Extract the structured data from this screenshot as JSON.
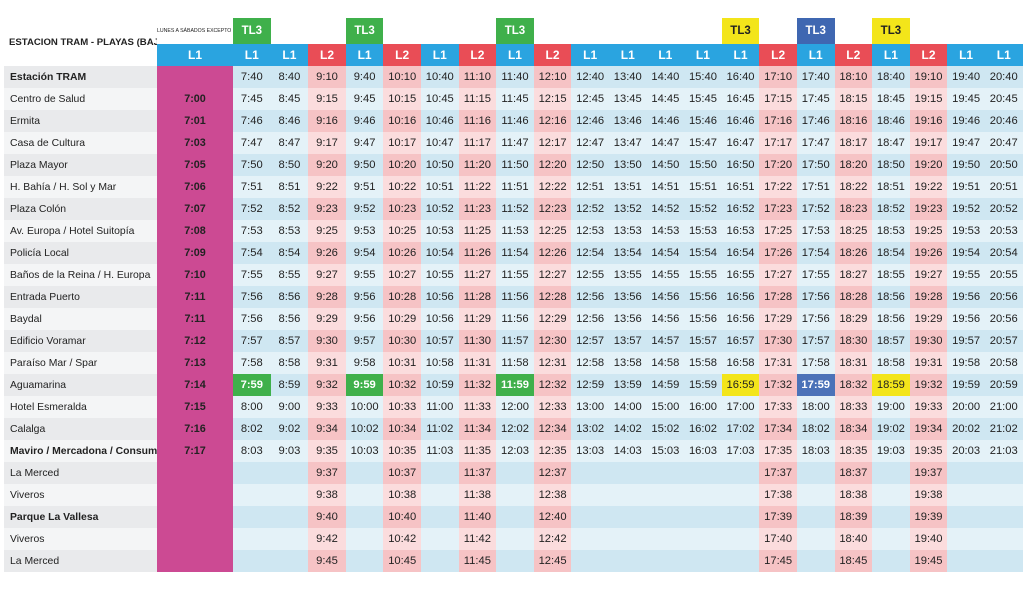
{
  "title": "ESTACION TRAM - PLAYAS (BAJADA)",
  "note": "LUNES A SÁBADOS EXCEPTO FESTIVOS",
  "colors": {
    "L1": "#2aa4e0",
    "L2": "#e94d56",
    "TL3_green": "#3fb04b",
    "TL3_yellow": "#f3e51a",
    "TL3_blue": "#3f67b1",
    "first_column": "#cc4a93",
    "title_bg": "#5e6777",
    "note_bg": "#5cb3e3"
  },
  "columns": [
    {
      "line": "L1",
      "tag": ""
    },
    {
      "line": "L1",
      "tag": "TL3",
      "tag_color": "green"
    },
    {
      "line": "L1",
      "tag": ""
    },
    {
      "line": "L2",
      "tag": ""
    },
    {
      "line": "L1",
      "tag": "TL3",
      "tag_color": "green"
    },
    {
      "line": "L2",
      "tag": ""
    },
    {
      "line": "L1",
      "tag": ""
    },
    {
      "line": "L2",
      "tag": ""
    },
    {
      "line": "L1",
      "tag": "TL3",
      "tag_color": "green"
    },
    {
      "line": "L2",
      "tag": ""
    },
    {
      "line": "L1",
      "tag": ""
    },
    {
      "line": "L1",
      "tag": ""
    },
    {
      "line": "L1",
      "tag": ""
    },
    {
      "line": "L1",
      "tag": ""
    },
    {
      "line": "L1",
      "tag": "TL3",
      "tag_color": "yellow"
    },
    {
      "line": "L2",
      "tag": ""
    },
    {
      "line": "L1",
      "tag": "TL3",
      "tag_color": "blue"
    },
    {
      "line": "L2",
      "tag": ""
    },
    {
      "line": "L1",
      "tag": "TL3",
      "tag_color": "yellow"
    },
    {
      "line": "L2",
      "tag": ""
    },
    {
      "line": "L1",
      "tag": ""
    },
    {
      "line": "L1",
      "tag": ""
    }
  ],
  "highlights": [
    {
      "row": 14,
      "col": 1,
      "color": "green"
    },
    {
      "row": 14,
      "col": 4,
      "color": "green"
    },
    {
      "row": 14,
      "col": 8,
      "color": "green"
    },
    {
      "row": 14,
      "col": 14,
      "color": "yellow"
    },
    {
      "row": 14,
      "col": 16,
      "color": "blue"
    },
    {
      "row": 14,
      "col": 18,
      "color": "yellow"
    }
  ],
  "rows": [
    {
      "stop": "Estación TRAM",
      "bold": true,
      "times": [
        "",
        "7:40",
        "8:40",
        "9:10",
        "9:40",
        "10:10",
        "10:40",
        "11:10",
        "11:40",
        "12:10",
        "12:40",
        "13:40",
        "14:40",
        "15:40",
        "16:40",
        "17:10",
        "17:40",
        "18:10",
        "18:40",
        "19:10",
        "19:40",
        "20:40"
      ]
    },
    {
      "stop": "Centro de Salud",
      "bold": false,
      "times": [
        "7:00",
        "7:45",
        "8:45",
        "9:15",
        "9:45",
        "10:15",
        "10:45",
        "11:15",
        "11:45",
        "12:15",
        "12:45",
        "13:45",
        "14:45",
        "15:45",
        "16:45",
        "17:15",
        "17:45",
        "18:15",
        "18:45",
        "19:15",
        "19:45",
        "20:45"
      ]
    },
    {
      "stop": "Ermita",
      "bold": false,
      "times": [
        "7:01",
        "7:46",
        "8:46",
        "9:16",
        "9:46",
        "10:16",
        "10:46",
        "11:16",
        "11:46",
        "12:16",
        "12:46",
        "13:46",
        "14:46",
        "15:46",
        "16:46",
        "17:16",
        "17:46",
        "18:16",
        "18:46",
        "19:16",
        "19:46",
        "20:46"
      ]
    },
    {
      "stop": "Casa de Cultura",
      "bold": false,
      "times": [
        "7:03",
        "7:47",
        "8:47",
        "9:17",
        "9:47",
        "10:17",
        "10:47",
        "11:17",
        "11:47",
        "12:17",
        "12:47",
        "13:47",
        "14:47",
        "15:47",
        "16:47",
        "17:17",
        "17:47",
        "18:17",
        "18:47",
        "19:17",
        "19:47",
        "20:47"
      ]
    },
    {
      "stop": "Plaza Mayor",
      "bold": false,
      "times": [
        "7:05",
        "7:50",
        "8:50",
        "9:20",
        "9:50",
        "10:20",
        "10:50",
        "11:20",
        "11:50",
        "12:20",
        "12:50",
        "13:50",
        "14:50",
        "15:50",
        "16:50",
        "17:20",
        "17:50",
        "18:20",
        "18:50",
        "19:20",
        "19:50",
        "20:50"
      ]
    },
    {
      "stop": "H. Bahía / H. Sol y Mar",
      "bold": false,
      "times": [
        "7:06",
        "7:51",
        "8:51",
        "9:22",
        "9:51",
        "10:22",
        "10:51",
        "11:22",
        "11:51",
        "12:22",
        "12:51",
        "13:51",
        "14:51",
        "15:51",
        "16:51",
        "17:22",
        "17:51",
        "18:22",
        "18:51",
        "19:22",
        "19:51",
        "20:51"
      ]
    },
    {
      "stop": "Plaza Colón",
      "bold": false,
      "times": [
        "7:07",
        "7:52",
        "8:52",
        "9:23",
        "9:52",
        "10:23",
        "10:52",
        "11:23",
        "11:52",
        "12:23",
        "12:52",
        "13:52",
        "14:52",
        "15:52",
        "16:52",
        "17:23",
        "17:52",
        "18:23",
        "18:52",
        "19:23",
        "19:52",
        "20:52"
      ]
    },
    {
      "stop": "Av. Europa / Hotel Suitopía",
      "bold": false,
      "times": [
        "7:08",
        "7:53",
        "8:53",
        "9:25",
        "9:53",
        "10:25",
        "10:53",
        "11:25",
        "11:53",
        "12:25",
        "12:53",
        "13:53",
        "14:53",
        "15:53",
        "16:53",
        "17:25",
        "17:53",
        "18:25",
        "18:53",
        "19:25",
        "19:53",
        "20:53"
      ]
    },
    {
      "stop": "Policía Local",
      "bold": false,
      "times": [
        "7:09",
        "7:54",
        "8:54",
        "9:26",
        "9:54",
        "10:26",
        "10:54",
        "11:26",
        "11:54",
        "12:26",
        "12:54",
        "13:54",
        "14:54",
        "15:54",
        "16:54",
        "17:26",
        "17:54",
        "18:26",
        "18:54",
        "19:26",
        "19:54",
        "20:54"
      ]
    },
    {
      "stop": "Baños de la Reina / H. Europa",
      "bold": false,
      "times": [
        "7:10",
        "7:55",
        "8:55",
        "9:27",
        "9:55",
        "10:27",
        "10:55",
        "11:27",
        "11:55",
        "12:27",
        "12:55",
        "13:55",
        "14:55",
        "15:55",
        "16:55",
        "17:27",
        "17:55",
        "18:27",
        "18:55",
        "19:27",
        "19:55",
        "20:55"
      ]
    },
    {
      "stop": "Entrada Puerto",
      "bold": false,
      "times": [
        "7:11",
        "7:56",
        "8:56",
        "9:28",
        "9:56",
        "10:28",
        "10:56",
        "11:28",
        "11:56",
        "12:28",
        "12:56",
        "13:56",
        "14:56",
        "15:56",
        "16:56",
        "17:28",
        "17:56",
        "18:28",
        "18:56",
        "19:28",
        "19:56",
        "20:56"
      ]
    },
    {
      "stop": "Baydal",
      "bold": false,
      "times": [
        "7:11",
        "7:56",
        "8:56",
        "9:29",
        "9:56",
        "10:29",
        "10:56",
        "11:29",
        "11:56",
        "12:29",
        "12:56",
        "13:56",
        "14:56",
        "15:56",
        "16:56",
        "17:29",
        "17:56",
        "18:29",
        "18:56",
        "19:29",
        "19:56",
        "20:56"
      ]
    },
    {
      "stop": "Edificio Voramar",
      "bold": false,
      "times": [
        "7:12",
        "7:57",
        "8:57",
        "9:30",
        "9:57",
        "10:30",
        "10:57",
        "11:30",
        "11:57",
        "12:30",
        "12:57",
        "13:57",
        "14:57",
        "15:57",
        "16:57",
        "17:30",
        "17:57",
        "18:30",
        "18:57",
        "19:30",
        "19:57",
        "20:57"
      ]
    },
    {
      "stop": "Paraíso Mar / Spar",
      "bold": false,
      "times": [
        "7:13",
        "7:58",
        "8:58",
        "9:31",
        "9:58",
        "10:31",
        "10:58",
        "11:31",
        "11:58",
        "12:31",
        "12:58",
        "13:58",
        "14:58",
        "15:58",
        "16:58",
        "17:31",
        "17:58",
        "18:31",
        "18:58",
        "19:31",
        "19:58",
        "20:58"
      ]
    },
    {
      "stop": "Aguamarina",
      "bold": false,
      "times": [
        "7:14",
        "7:59",
        "8:59",
        "9:32",
        "9:59",
        "10:32",
        "10:59",
        "11:32",
        "11:59",
        "12:32",
        "12:59",
        "13:59",
        "14:59",
        "15:59",
        "16:59",
        "17:32",
        "17:59",
        "18:32",
        "18:59",
        "19:32",
        "19:59",
        "20:59"
      ]
    },
    {
      "stop": "Hotel Esmeralda",
      "bold": false,
      "times": [
        "7:15",
        "8:00",
        "9:00",
        "9:33",
        "10:00",
        "10:33",
        "11:00",
        "11:33",
        "12:00",
        "12:33",
        "13:00",
        "14:00",
        "15:00",
        "16:00",
        "17:00",
        "17:33",
        "18:00",
        "18:33",
        "19:00",
        "19:33",
        "20:00",
        "21:00"
      ]
    },
    {
      "stop": "Calalga",
      "bold": false,
      "times": [
        "7:16",
        "8:02",
        "9:02",
        "9:34",
        "10:02",
        "10:34",
        "11:02",
        "11:34",
        "12:02",
        "12:34",
        "13:02",
        "14:02",
        "15:02",
        "16:02",
        "17:02",
        "17:34",
        "18:02",
        "18:34",
        "19:02",
        "19:34",
        "20:02",
        "21:02"
      ]
    },
    {
      "stop": "Maviro / Mercadona / Consum",
      "bold": true,
      "times": [
        "7:17",
        "8:03",
        "9:03",
        "9:35",
        "10:03",
        "10:35",
        "11:03",
        "11:35",
        "12:03",
        "12:35",
        "13:03",
        "14:03",
        "15:03",
        "16:03",
        "17:03",
        "17:35",
        "18:03",
        "18:35",
        "19:03",
        "19:35",
        "20:03",
        "21:03"
      ]
    },
    {
      "stop": "La Merced",
      "bold": false,
      "times": [
        "",
        "",
        "",
        "9:37",
        "",
        "10:37",
        "",
        "11:37",
        "",
        "12:37",
        "",
        "",
        "",
        "",
        "",
        "17:37",
        "",
        "18:37",
        "",
        "19:37",
        "",
        ""
      ]
    },
    {
      "stop": "Viveros",
      "bold": false,
      "times": [
        "",
        "",
        "",
        "9:38",
        "",
        "10:38",
        "",
        "11:38",
        "",
        "12:38",
        "",
        "",
        "",
        "",
        "",
        "17:38",
        "",
        "18:38",
        "",
        "19:38",
        "",
        ""
      ]
    },
    {
      "stop": "Parque La Vallesa",
      "bold": true,
      "times": [
        "",
        "",
        "",
        "9:40",
        "",
        "10:40",
        "",
        "11:40",
        "",
        "12:40",
        "",
        "",
        "",
        "",
        "",
        "17:39",
        "",
        "18:39",
        "",
        "19:39",
        "",
        ""
      ]
    },
    {
      "stop": "Viveros",
      "bold": false,
      "times": [
        "",
        "",
        "",
        "9:42",
        "",
        "10:42",
        "",
        "11:42",
        "",
        "12:42",
        "",
        "",
        "",
        "",
        "",
        "17:40",
        "",
        "18:40",
        "",
        "19:40",
        "",
        ""
      ]
    },
    {
      "stop": "La Merced",
      "bold": false,
      "times": [
        "",
        "",
        "",
        "9:45",
        "",
        "10:45",
        "",
        "11:45",
        "",
        "12:45",
        "",
        "",
        "",
        "",
        "",
        "17:45",
        "",
        "18:45",
        "",
        "19:45",
        "",
        ""
      ]
    }
  ]
}
